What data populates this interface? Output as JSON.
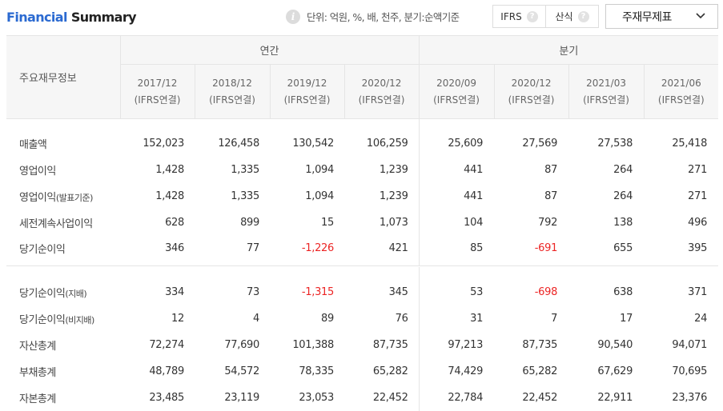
{
  "header": {
    "title_part1": "Financial",
    "title_part2": " Summary",
    "unit_text": "단위: 억원, %, 배, 천주, 분기:순액기준",
    "toggle": {
      "ifrs_label": "IFRS",
      "calc_label": "산식",
      "help_glyph": "?"
    },
    "dropdown_label": "주재무제표"
  },
  "table": {
    "row_header": "주요재무정보",
    "group_annual": "연간",
    "group_quarter": "분기",
    "annual_periods": [
      {
        "date": "2017/12",
        "basis": "(IFRS연결)"
      },
      {
        "date": "2018/12",
        "basis": "(IFRS연결)"
      },
      {
        "date": "2019/12",
        "basis": "(IFRS연결)"
      },
      {
        "date": "2020/12",
        "basis": "(IFRS연결)"
      }
    ],
    "quarter_periods": [
      {
        "date": "2020/09",
        "basis": "(IFRS연결)"
      },
      {
        "date": "2020/12",
        "basis": "(IFRS연결)"
      },
      {
        "date": "2021/03",
        "basis": "(IFRS연결)"
      },
      {
        "date": "2021/06",
        "basis": "(IFRS연결)"
      }
    ],
    "rows": [
      {
        "label": "매출액",
        "suffix": "",
        "values": [
          "152,023",
          "126,458",
          "130,542",
          "106,259",
          "25,609",
          "27,569",
          "27,538",
          "25,418"
        ]
      },
      {
        "label": "영업이익",
        "suffix": "",
        "values": [
          "1,428",
          "1,335",
          "1,094",
          "1,239",
          "441",
          "87",
          "264",
          "271"
        ]
      },
      {
        "label": "영업이익",
        "suffix": "(발표기준)",
        "values": [
          "1,428",
          "1,335",
          "1,094",
          "1,239",
          "441",
          "87",
          "264",
          "271"
        ]
      },
      {
        "label": "세전계속사업이익",
        "suffix": "",
        "values": [
          "628",
          "899",
          "15",
          "1,073",
          "104",
          "792",
          "138",
          "496"
        ]
      },
      {
        "label": "당기순이익",
        "suffix": "",
        "values": [
          "346",
          "77",
          "-1,226",
          "421",
          "85",
          "-691",
          "655",
          "395"
        ]
      },
      {
        "label": "당기순이익",
        "suffix": "(지배)",
        "values": [
          "334",
          "73",
          "-1,315",
          "345",
          "53",
          "-698",
          "638",
          "371"
        ]
      },
      {
        "label": "당기순이익",
        "suffix": "(비지배)",
        "values": [
          "12",
          "4",
          "89",
          "76",
          "31",
          "7",
          "17",
          "24"
        ]
      },
      {
        "label": "자산총계",
        "suffix": "",
        "values": [
          "72,274",
          "77,690",
          "101,388",
          "87,735",
          "97,213",
          "87,735",
          "90,540",
          "94,071"
        ]
      },
      {
        "label": "부채총계",
        "suffix": "",
        "values": [
          "48,789",
          "54,572",
          "78,335",
          "65,282",
          "74,429",
          "65,282",
          "67,629",
          "70,695"
        ]
      },
      {
        "label": "자본총계",
        "suffix": "",
        "values": [
          "23,485",
          "23,119",
          "23,053",
          "22,452",
          "22,784",
          "22,452",
          "22,911",
          "23,376"
        ]
      }
    ]
  },
  "colors": {
    "negative": "#ec2424",
    "title_accent": "#2b6ad1"
  }
}
